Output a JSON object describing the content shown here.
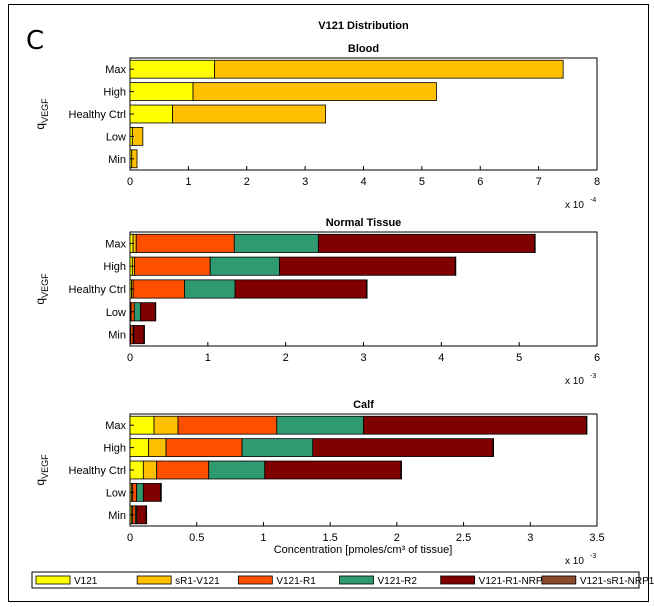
{
  "panel_letter": "C",
  "xlabel": "Concentration [pmoles/cm³ of tissue]",
  "ylabel_main": "q",
  "ylabel_sub": "VEGF",
  "categories": [
    "Max",
    "High",
    "Healthy Ctrl",
    "Low",
    "Min"
  ],
  "legend": [
    {
      "name": "V121",
      "color": "#ffff00"
    },
    {
      "name": "sR1-V121",
      "color": "#ffc000"
    },
    {
      "name": "V121-R1",
      "color": "#ff5000"
    },
    {
      "name": "V121-R2",
      "color": "#2f9970"
    },
    {
      "name": "V121-R1-NRP1",
      "color": "#800000"
    },
    {
      "name": "V121-sR1-NRP1",
      "color": "#8b4a2c"
    }
  ],
  "chart_data": [
    {
      "type": "bar",
      "orientation": "horizontal",
      "stacked": true,
      "title": "V121 Distribution",
      "subtitle": "Blood",
      "categories": [
        "Max",
        "High",
        "Healthy Ctrl",
        "Low",
        "Min"
      ],
      "multiplier_label": "x 10",
      "multiplier_exp": "-4",
      "xlim": [
        0,
        8
      ],
      "xticks": [
        0,
        1,
        2,
        3,
        4,
        5,
        6,
        7,
        8
      ],
      "series": [
        {
          "name": "V121",
          "values": [
            1.45,
            1.08,
            0.73,
            0.04,
            0.03
          ]
        },
        {
          "name": "sR1-V121",
          "values": [
            5.97,
            4.17,
            2.62,
            0.18,
            0.09
          ]
        },
        {
          "name": "V121-R1",
          "values": [
            0,
            0,
            0,
            0,
            0
          ]
        },
        {
          "name": "V121-R2",
          "values": [
            0,
            0,
            0,
            0,
            0
          ]
        },
        {
          "name": "V121-R1-NRP1",
          "values": [
            0,
            0,
            0,
            0,
            0
          ]
        },
        {
          "name": "V121-sR1-NRP1",
          "values": [
            0,
            0,
            0,
            0,
            0
          ]
        }
      ]
    },
    {
      "type": "bar",
      "orientation": "horizontal",
      "stacked": true,
      "title": "Normal Tissue",
      "categories": [
        "Max",
        "High",
        "Healthy Ctrl",
        "Low",
        "Min"
      ],
      "multiplier_label": "x 10",
      "multiplier_exp": "-3",
      "xlim": [
        0,
        6
      ],
      "xticks": [
        0,
        1,
        2,
        3,
        4,
        5,
        6
      ],
      "series": [
        {
          "name": "V121",
          "values": [
            0.04,
            0.03,
            0.02,
            0.01,
            0.005
          ]
        },
        {
          "name": "sR1-V121",
          "values": [
            0.04,
            0.03,
            0.02,
            0.005,
            0.005
          ]
        },
        {
          "name": "V121-R1",
          "values": [
            1.26,
            0.97,
            0.66,
            0.04,
            0.03
          ]
        },
        {
          "name": "V121-R2",
          "values": [
            1.08,
            0.89,
            0.65,
            0.08,
            0.01
          ]
        },
        {
          "name": "V121-R1-NRP1",
          "values": [
            2.78,
            2.26,
            1.69,
            0.19,
            0.13
          ]
        },
        {
          "name": "V121-sR1-NRP1",
          "values": [
            0.005,
            0.005,
            0.005,
            0.005,
            0.005
          ]
        }
      ]
    },
    {
      "type": "bar",
      "orientation": "horizontal",
      "stacked": true,
      "title": "Calf",
      "categories": [
        "Max",
        "High",
        "Healthy Ctrl",
        "Low",
        "Min"
      ],
      "multiplier_label": "x 10",
      "multiplier_exp": "-3",
      "xlim": [
        0,
        3.5
      ],
      "xticks": [
        0,
        0.5,
        1,
        1.5,
        2,
        2.5,
        3,
        3.5
      ],
      "series": [
        {
          "name": "V121",
          "values": [
            0.18,
            0.14,
            0.1,
            0.01,
            0.01
          ]
        },
        {
          "name": "sR1-V121",
          "values": [
            0.18,
            0.13,
            0.1,
            0.01,
            0.01
          ]
        },
        {
          "name": "V121-R1",
          "values": [
            0.74,
            0.57,
            0.39,
            0.03,
            0.02
          ]
        },
        {
          "name": "V121-R2",
          "values": [
            0.65,
            0.53,
            0.42,
            0.05,
            0.01
          ]
        },
        {
          "name": "V121-R1-NRP1",
          "values": [
            1.67,
            1.35,
            1.02,
            0.13,
            0.07
          ]
        },
        {
          "name": "V121-sR1-NRP1",
          "values": [
            0.005,
            0.005,
            0.005,
            0.005,
            0.005
          ]
        }
      ]
    }
  ]
}
